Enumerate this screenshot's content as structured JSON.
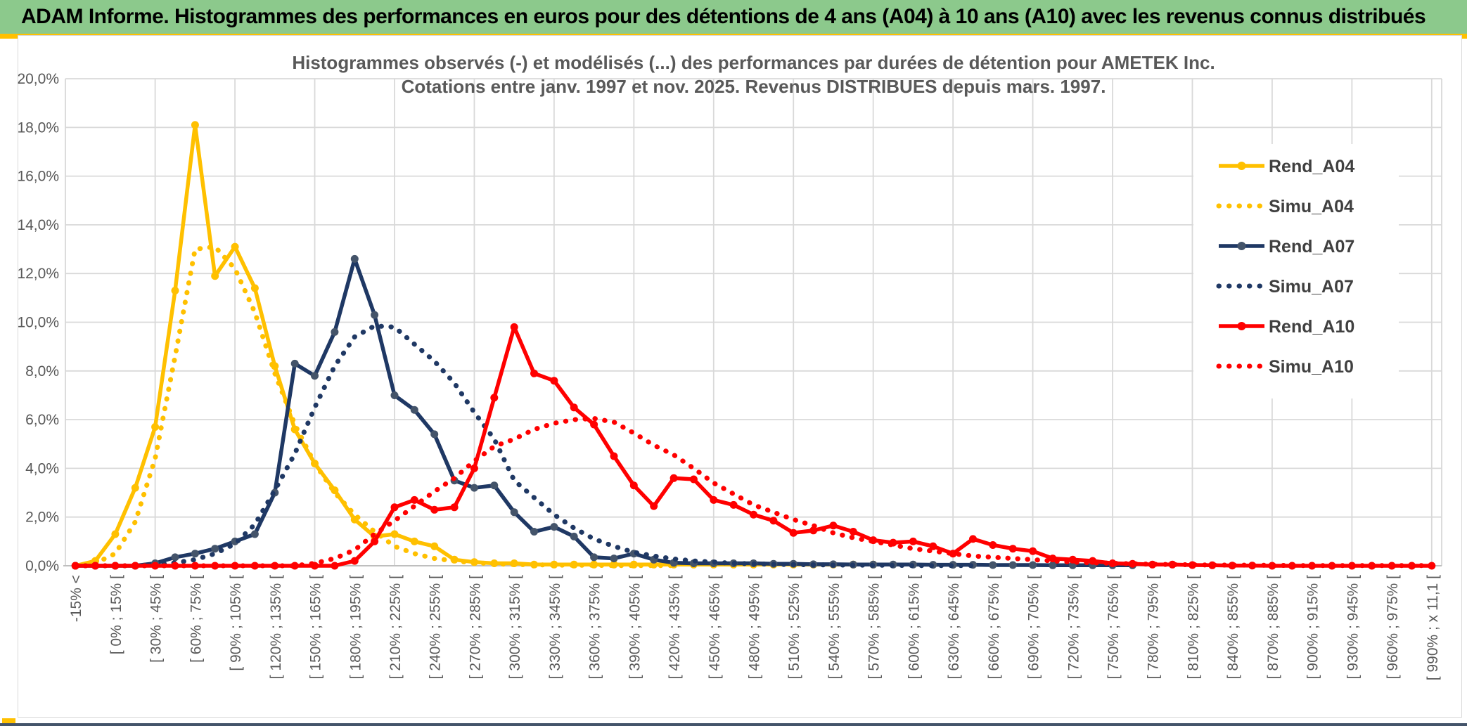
{
  "banner": {
    "title": "ADAM Informe. Histogrammes des performances en euros pour des détentions de 4 ans (A04) à 10 ans (A10) avec les revenus connus distribués"
  },
  "chart_data": {
    "type": "line",
    "title": "Histogrammes observés (-) et modélisés (...) des performances par durées de détention pour AMETEK Inc.",
    "subtitle": "Cotations entre janv. 1997 et nov. 2025. Revenus DISTRIBUES depuis mars. 1997.",
    "unit": "%",
    "ylim": [
      0,
      20
    ],
    "y_ticks": [
      "0,0%",
      "2,0%",
      "4,0%",
      "6,0%",
      "8,0%",
      "10,0%",
      "12,0%",
      "14,0%",
      "16,0%",
      "18,0%",
      "20,0%"
    ],
    "grid": true,
    "legend_position": "right",
    "accent_colors": {
      "gold": "#FFC000",
      "navy": "#1F3864",
      "navy_marker": "#44546A",
      "red": "#FF0000",
      "banner_green": "#8CC98C",
      "text_gray": "#595959"
    },
    "categories": [
      "-15% <",
      "",
      "[ 0% ; 15% [",
      "",
      "[ 30% ; 45% [",
      "",
      "[ 60% ; 75% [",
      "",
      "[ 90% ; 105% [",
      "",
      "[ 120% ; 135% [",
      "",
      "[ 150% ; 165% [",
      "",
      "[ 180% ; 195% [",
      "",
      "[ 210% ; 225% [",
      "",
      "[ 240% ; 255% [",
      "",
      "[ 270% ; 285% [",
      "",
      "[ 300% ; 315% [",
      "",
      "[ 330% ; 345% [",
      "",
      "[ 360% ; 375% [",
      "",
      "[ 390% ; 405% [",
      "",
      "[ 420% ; 435% [",
      "",
      "[ 450% ; 465% [",
      "",
      "[ 480% ; 495% [",
      "",
      "[ 510% ; 525% [",
      "",
      "[ 540% ; 555% [",
      "",
      "[ 570% ; 585% [",
      "",
      "[ 600% ; 615% [",
      "",
      "[ 630% ; 645% [",
      "",
      "[ 660% ; 675% [",
      "",
      "[ 690% ; 705% [",
      "",
      "[ 720% ; 735% [",
      "",
      "[ 750% ; 765% [",
      "",
      "[ 780% ; 795% [",
      "",
      "[ 810% ; 825% [",
      "",
      "[ 840% ; 855% [",
      "",
      "[ 870% ; 885% [",
      "",
      "[ 900% ; 915% [",
      "",
      "[ 930% ; 945% [",
      "",
      "[ 960% ; 975% [",
      "",
      "[ 990% ; x 11,1 ["
    ],
    "series": [
      {
        "name": "Rend_A04",
        "style": "solid",
        "color": "#FFC000",
        "marker_color": "#FFC000",
        "values": [
          0,
          0.2,
          1.3,
          3.2,
          5.7,
          11.3,
          18.1,
          11.9,
          13.1,
          11.4,
          8.2,
          5.6,
          4.2,
          3.1,
          1.9,
          1.2,
          1.3,
          1.0,
          0.8,
          0.25,
          0.15,
          0.1,
          0.1,
          0.05,
          0.05,
          0.05,
          0.05,
          0.05,
          0.05,
          0.05,
          0.05,
          0.05,
          0.05,
          0.05,
          0.05,
          0.05,
          0.05,
          0.05,
          0.05,
          0.05,
          0.05,
          null,
          null,
          null,
          null,
          null,
          null,
          null,
          null,
          null,
          null,
          null,
          null,
          null,
          null,
          null,
          null,
          null,
          null,
          null,
          null,
          null,
          null,
          null,
          null,
          null,
          null,
          null,
          null
        ]
      },
      {
        "name": "Simu_A04",
        "style": "dotted",
        "color": "#FFC000",
        "values": [
          0,
          0.1,
          0.5,
          1.8,
          4.4,
          8.6,
          13.0,
          13.1,
          12.2,
          10.4,
          7.9,
          5.8,
          4.2,
          3.0,
          2.1,
          1.4,
          0.8,
          0.5,
          0.3,
          0.2,
          0.12,
          0.08,
          0.05,
          0.04,
          0.03,
          0.02,
          0.02,
          0.01,
          0.01,
          0.01,
          0.01,
          null,
          null,
          null,
          null,
          null,
          null,
          null,
          null,
          null,
          null,
          null,
          null,
          null,
          null,
          null,
          null,
          null,
          null,
          null,
          null,
          null,
          null,
          null,
          null,
          null,
          null,
          null,
          null,
          null,
          null,
          null,
          null,
          null,
          null,
          null,
          null,
          null,
          null
        ]
      },
      {
        "name": "Rend_A07",
        "style": "solid",
        "color": "#1F3864",
        "marker_color": "#44546A",
        "values": [
          0,
          0,
          0,
          0,
          0.1,
          0.35,
          0.5,
          0.7,
          1.0,
          1.3,
          3.0,
          8.3,
          7.8,
          9.6,
          12.6,
          10.3,
          7.0,
          6.4,
          5.4,
          3.5,
          3.2,
          3.3,
          2.2,
          1.4,
          1.6,
          1.2,
          0.35,
          0.3,
          0.5,
          0.25,
          0.12,
          0.1,
          0.1,
          0.1,
          0.1,
          0.08,
          0.08,
          0.06,
          0.06,
          0.05,
          0.05,
          0.05,
          0.05,
          0.04,
          0.04,
          0.04,
          0.03,
          0.03,
          0.03,
          0.02,
          0.02,
          0.02,
          0.02,
          0.02,
          null,
          null,
          null,
          null,
          null,
          null,
          null,
          null,
          null,
          null,
          null,
          null,
          null,
          null,
          null
        ]
      },
      {
        "name": "Simu_A07",
        "style": "dotted",
        "color": "#1F3864",
        "values": [
          0,
          0,
          0,
          0,
          0.05,
          0.12,
          0.25,
          0.5,
          0.9,
          1.7,
          3.1,
          4.6,
          6.5,
          8.2,
          9.4,
          9.85,
          9.8,
          9.1,
          8.4,
          7.5,
          6.3,
          5.2,
          3.5,
          2.8,
          2.1,
          1.55,
          1.1,
          0.8,
          0.55,
          0.4,
          0.28,
          0.2,
          0.15,
          0.1,
          0.08,
          0.06,
          0.05,
          0.04,
          0.03,
          0.03,
          0.02,
          0.02,
          0.01,
          0.01,
          0.01,
          0.01,
          null,
          null,
          null,
          null,
          null,
          null,
          null,
          null,
          null,
          null,
          null,
          null,
          null,
          null,
          null,
          null,
          null,
          null,
          null,
          null,
          null,
          null,
          null
        ]
      },
      {
        "name": "Rend_A10",
        "style": "solid",
        "color": "#FF0000",
        "marker_color": "#FF0000",
        "values": [
          0,
          0,
          0,
          0,
          0,
          0,
          0,
          0,
          0,
          0,
          0,
          0,
          0,
          0,
          0.2,
          1.0,
          2.4,
          2.7,
          2.3,
          2.4,
          4.0,
          6.9,
          9.8,
          7.9,
          7.6,
          6.5,
          5.8,
          4.5,
          3.3,
          2.45,
          3.6,
          3.55,
          2.7,
          2.5,
          2.1,
          1.85,
          1.35,
          1.45,
          1.65,
          1.4,
          1.05,
          0.95,
          1.0,
          0.8,
          0.5,
          1.1,
          0.85,
          0.7,
          0.6,
          0.3,
          0.25,
          0.2,
          0.1,
          0.08,
          0.05,
          0.05,
          0.03,
          0.02,
          0.01,
          0.01,
          0,
          0,
          0,
          0,
          0,
          0,
          0,
          0,
          0
        ]
      },
      {
        "name": "Simu_A10",
        "style": "dotted",
        "color": "#FF0000",
        "values": [
          0,
          0,
          0,
          0,
          0,
          0,
          0,
          0,
          0,
          0,
          0,
          0,
          0.1,
          0.3,
          0.65,
          1.3,
          1.85,
          2.45,
          3.05,
          3.6,
          4.3,
          4.9,
          5.2,
          5.6,
          5.85,
          6.0,
          6.05,
          5.9,
          5.45,
          4.95,
          4.55,
          4.0,
          3.4,
          2.95,
          2.5,
          2.2,
          1.9,
          1.65,
          1.35,
          1.15,
          1.0,
          0.85,
          0.7,
          0.6,
          0.5,
          0.4,
          0.35,
          0.3,
          0.25,
          0.2,
          0.15,
          0.12,
          0.1,
          0.08,
          0.06,
          0.05,
          0.04,
          0.03,
          0.03,
          0.02,
          0.02,
          0.01,
          0.01,
          0.01,
          0.01,
          0.01,
          0.01,
          0.01,
          0.01
        ]
      }
    ]
  }
}
